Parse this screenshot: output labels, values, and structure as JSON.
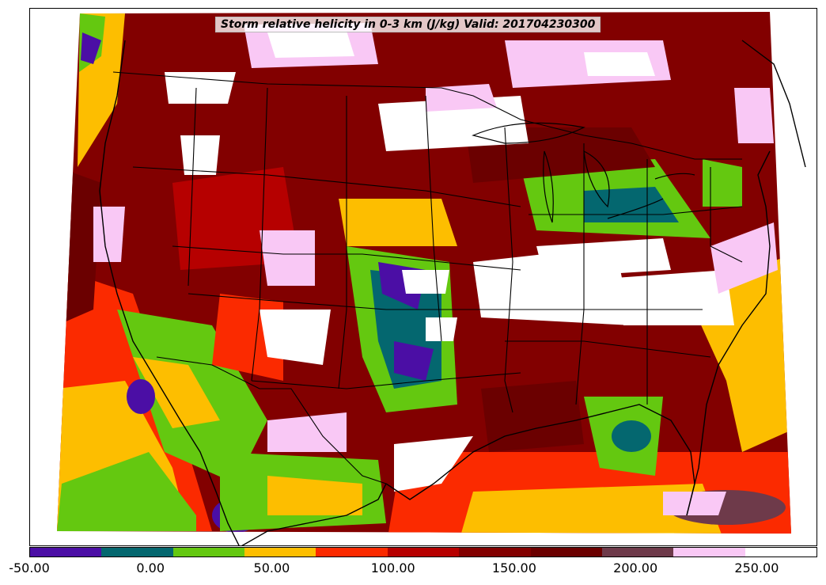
{
  "title": "Storm relative helicity in 0-3 km (J/kg) Valid: 201704230300",
  "colorbar": {
    "colors": [
      "#4b0ea5",
      "#04676f",
      "#64c810",
      "#fdbe00",
      "#fb2a00",
      "#b60000",
      "#820000",
      "#6b0000",
      "#6e3a4a",
      "#f9c8f5",
      "#ffffff"
    ],
    "labels": [
      "-50.00",
      "0.00",
      "50.00",
      "100.00",
      "150.00",
      "200.00",
      "250.00"
    ]
  },
  "legend_values": [
    -50,
    0,
    50,
    100,
    150,
    200,
    250
  ],
  "field_palette": {
    "negative": "#4b0ea5",
    "low": "#04676f",
    "green": "#64c810",
    "orange": "#fdbe00",
    "red": "#fb2a00",
    "darkred": "#b60000",
    "maroon": "#820000",
    "deepmaroon": "#6b0000",
    "mauve": "#6e3a4a",
    "pink": "#f9c8f5",
    "white": "#ffffff"
  }
}
